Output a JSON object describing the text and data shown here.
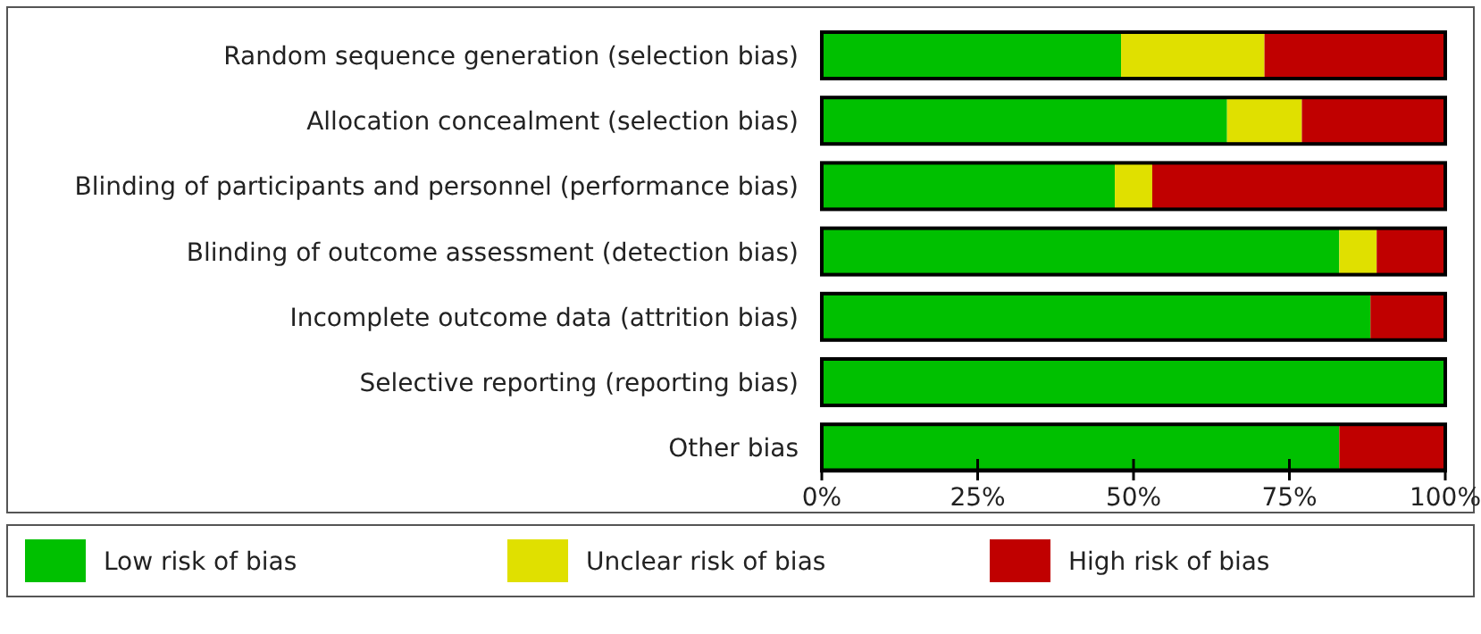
{
  "chart_data": {
    "type": "bar",
    "orientation": "horizontal",
    "stacked": true,
    "categories": [
      "Random sequence generation (selection bias)",
      "Allocation concealment (selection bias)",
      "Blinding of participants and personnel (performance bias)",
      "Blinding of outcome assessment (detection bias)",
      "Incomplete outcome data (attrition bias)",
      "Selective reporting (reporting bias)",
      "Other bias"
    ],
    "series": [
      {
        "name": "Low risk of bias",
        "color": "#00c000",
        "values": [
          48,
          65,
          47,
          83,
          88,
          100,
          83
        ]
      },
      {
        "name": "Unclear risk of bias",
        "color": "#e0e000",
        "values": [
          23,
          12,
          6,
          6,
          0,
          0,
          0
        ]
      },
      {
        "name": "High risk of bias",
        "color": "#c00000",
        "values": [
          29,
          23,
          47,
          11,
          12,
          0,
          17
        ]
      }
    ],
    "xlim": [
      0,
      100
    ],
    "xticks": [
      {
        "value": 0,
        "label": "0%"
      },
      {
        "value": 25,
        "label": "25%"
      },
      {
        "value": 50,
        "label": "50%"
      },
      {
        "value": 75,
        "label": "75%"
      },
      {
        "value": 100,
        "label": "100%"
      }
    ],
    "grid": false,
    "legend": "bottom"
  }
}
